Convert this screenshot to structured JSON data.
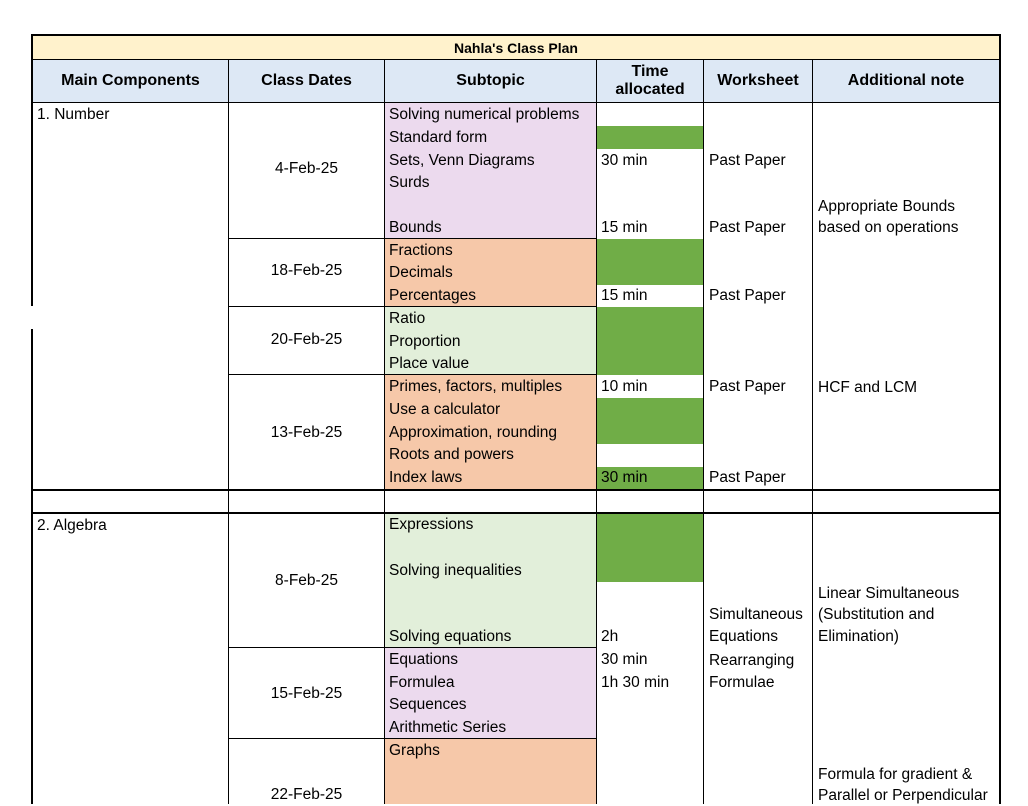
{
  "title": "Nahla's Class Plan",
  "headers": {
    "main_components": "Main Components",
    "class_dates": "Class Dates",
    "subtopic": "Subtopic",
    "time_allocated": "Time allocated",
    "worksheet": "Worksheet",
    "additional_note": "Additional note"
  },
  "colors": {
    "title_fill": "#fff2cc",
    "header_fill": "#dde8f5",
    "purple_fill": "#ecdaee",
    "orange_fill": "#f6c8a9",
    "light_green_fill": "#e2efda",
    "green_fill": "#70ad47"
  },
  "section1": {
    "component": "1. Number",
    "dates": [
      "4-Feb-25",
      "18-Feb-25",
      "20-Feb-25",
      "13-Feb-25"
    ],
    "subtopics": [
      "Solving numerical problems",
      "Standard form",
      "Sets, Venn Diagrams",
      "Surds",
      "Bounds",
      "Fractions",
      "Decimals",
      "Percentages",
      "Ratio",
      "Proportion",
      "Place value",
      "Primes, factors, multiples",
      "Use a calculator",
      "Approximation, rounding",
      "Roots and powers",
      "Index laws"
    ],
    "times": [
      "30 min",
      "15 min",
      "15 min",
      "10 min",
      "30 min"
    ],
    "worksheets": [
      "Past Paper",
      "Past Paper",
      "Past Paper",
      "Past Paper",
      "Past Paper"
    ],
    "notes": {
      "bounds_line1": "Appropriate Bounds",
      "bounds_line2": "based on operations",
      "hcf": "HCF and LCM"
    }
  },
  "section2": {
    "component": "2. Algebra",
    "dates": [
      "8-Feb-25",
      "15-Feb-25",
      "22-Feb-25"
    ],
    "subtopics": [
      "Expressions",
      "Solving inequalities",
      "Solving equations",
      "Equations",
      "Formulea",
      "Sequences",
      "Arithmetic Series",
      "Graphs"
    ],
    "times": [
      "2h",
      "30 min",
      "1h 30 min"
    ],
    "worksheets": [
      "Simultaneous",
      "Equations",
      "Rearranging",
      "Formulae"
    ],
    "notes": {
      "linear_line1": "Linear Simultaneous",
      "linear_line2": "(Substitution and",
      "linear_line3": "Elimination)",
      "gradient_line1": "Formula for gradient &",
      "gradient_line2": "Parallel or Perpendicular"
    }
  }
}
